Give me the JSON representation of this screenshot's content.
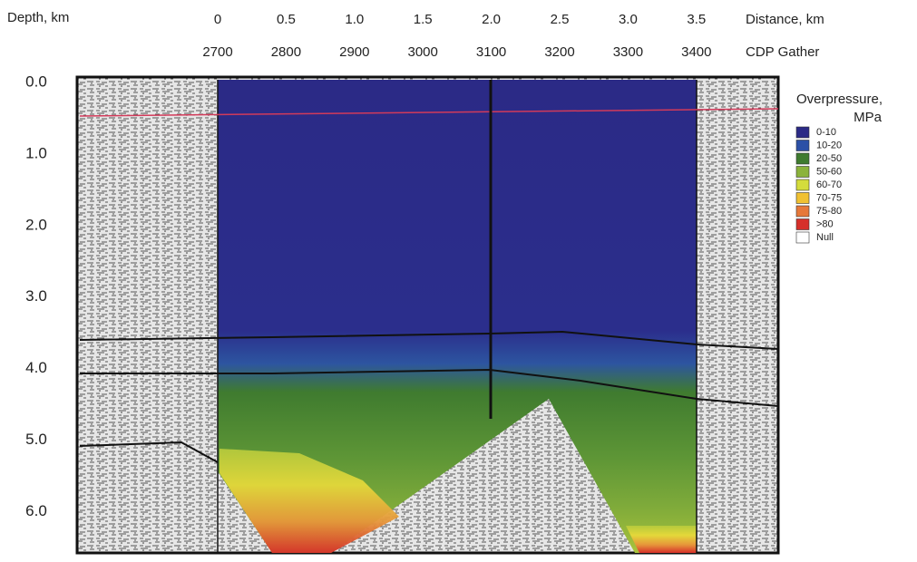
{
  "axes": {
    "depth_label": "Depth,  km",
    "depth_ticks": [
      "0.0",
      "1.0",
      "2.0",
      "3.0",
      "4.0",
      "5.0",
      "6.0"
    ],
    "distance_label": "Distance, km",
    "distance_ticks": [
      "0",
      "0.5",
      "1.0",
      "1.5",
      "2.0",
      "2.5",
      "3.0",
      "3.5"
    ],
    "cdp_label": "CDP Gather",
    "cdp_ticks": [
      "2700",
      "2800",
      "2900",
      "3000",
      "3100",
      "3200",
      "3300",
      "3400"
    ]
  },
  "legend": {
    "title": "Overpressure,",
    "unit": "MPa",
    "items": [
      {
        "label": "0-10",
        "color": "#2b2a86"
      },
      {
        "label": "10-20",
        "color": "#2c50a6"
      },
      {
        "label": "20-50",
        "color": "#3f7b2f"
      },
      {
        "label": "50-60",
        "color": "#8bb33b"
      },
      {
        "label": "60-70",
        "color": "#d4dc3c"
      },
      {
        "label": "70-75",
        "color": "#f0c132"
      },
      {
        "label": "75-80",
        "color": "#e6783a"
      },
      {
        "label": ">80",
        "color": "#d6302a"
      },
      {
        "label": "Null",
        "color": "#ffffff"
      }
    ]
  }
}
